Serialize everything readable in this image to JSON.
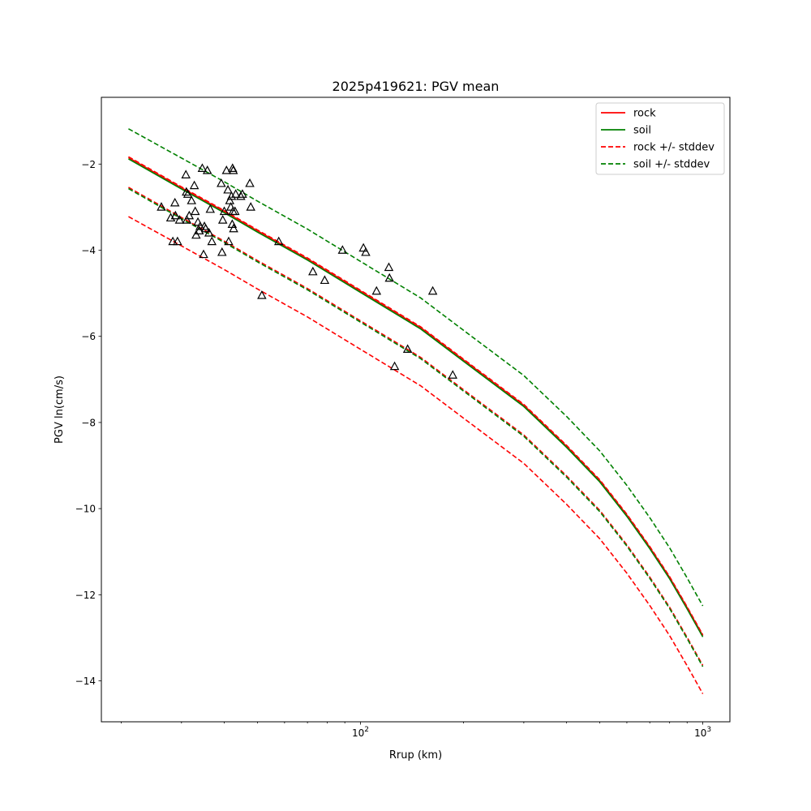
{
  "chart_data": {
    "type": "line",
    "title": "2025p419621: PGV mean",
    "xlabel": "Rrup (km)",
    "ylabel": "PGV ln(cm/s)",
    "xscale": "log",
    "xlim": [
      17.5,
      1200
    ],
    "ylim": [
      -14.95,
      -0.45
    ],
    "x_major_ticks": [
      100,
      1000
    ],
    "x_tick_labels": [
      "10",
      "10"
    ],
    "x_tick_exponents": [
      "2",
      "3"
    ],
    "x_minor_ticks": [
      20,
      30,
      40,
      50,
      60,
      70,
      80,
      90,
      200,
      300,
      400,
      500,
      600,
      700,
      800,
      900
    ],
    "y_ticks": [
      -14,
      -12,
      -10,
      -8,
      -6,
      -4,
      -2
    ],
    "y_tick_labels": [
      "−14",
      "−12",
      "−10",
      "−8",
      "−6",
      "−4",
      "−2"
    ],
    "grid": false,
    "legend_position": "top-right",
    "series": [
      {
        "name": "rock",
        "color": "#ff0000",
        "style": "solid",
        "x": [
          21,
          30,
          40,
          50,
          70,
          100,
          150,
          200,
          300,
          400,
          500,
          600,
          700,
          800,
          900,
          1000
        ],
        "y": [
          -1.85,
          -2.55,
          -3.1,
          -3.55,
          -4.2,
          -4.95,
          -5.8,
          -6.55,
          -7.6,
          -8.55,
          -9.35,
          -10.15,
          -10.9,
          -11.6,
          -12.3,
          -12.95
        ]
      },
      {
        "name": "soil",
        "color": "#008000",
        "style": "solid",
        "x": [
          21,
          30,
          40,
          50,
          70,
          100,
          150,
          200,
          300,
          400,
          500,
          600,
          700,
          800,
          900,
          1000
        ],
        "y": [
          -1.88,
          -2.58,
          -3.13,
          -3.58,
          -4.23,
          -4.98,
          -5.83,
          -6.58,
          -7.63,
          -8.58,
          -9.38,
          -10.18,
          -10.93,
          -11.63,
          -12.33,
          -12.98
        ]
      },
      {
        "name": "rock +/- stddev",
        "color": "#ff0000",
        "style": "dashed",
        "x": [
          21,
          30,
          40,
          50,
          70,
          100,
          150,
          200,
          300,
          400,
          500,
          600,
          700,
          800,
          900,
          1000
        ],
        "y": [
          -3.22,
          -3.9,
          -4.45,
          -4.9,
          -5.55,
          -6.3,
          -7.15,
          -7.9,
          -8.95,
          -9.9,
          -10.7,
          -11.5,
          -12.25,
          -12.95,
          -13.65,
          -14.3
        ]
      },
      {
        "name": "",
        "color": "#ff0000",
        "style": "dashed",
        "x": [
          21,
          30,
          40,
          50,
          70,
          100,
          150,
          200,
          300,
          400,
          500,
          600,
          700,
          800,
          900,
          1000
        ],
        "y": [
          -2.54,
          -3.24,
          -3.79,
          -4.24,
          -4.89,
          -5.64,
          -6.49,
          -7.24,
          -8.29,
          -9.24,
          -10.04,
          -10.84,
          -11.59,
          -12.29,
          -12.99,
          -13.64
        ]
      },
      {
        "name": "",
        "color": "#ff0000",
        "style": "dashed",
        "x": [
          21,
          30,
          40,
          50,
          70,
          100,
          150,
          200,
          300,
          400,
          500,
          600,
          700,
          800,
          900,
          1000
        ],
        "y": [
          -1.83,
          -2.53,
          -3.08,
          -3.53,
          -4.18,
          -4.93,
          -5.78,
          -6.53,
          -7.58,
          -8.53,
          -9.33,
          -10.13,
          -10.88,
          -11.58,
          -12.28,
          -12.93
        ]
      },
      {
        "name": "soil +/- stddev",
        "color": "#008000",
        "style": "dashed",
        "x": [
          21,
          30,
          40,
          50,
          70,
          100,
          150,
          200,
          300,
          400,
          500,
          600,
          700,
          800,
          900,
          1000
        ],
        "y": [
          -1.18,
          -1.86,
          -2.41,
          -2.86,
          -3.51,
          -4.26,
          -5.11,
          -5.86,
          -6.91,
          -7.86,
          -8.66,
          -9.46,
          -10.21,
          -10.91,
          -11.61,
          -12.26
        ]
      },
      {
        "name": "",
        "color": "#008000",
        "style": "dashed",
        "x": [
          21,
          30,
          40,
          50,
          70,
          100,
          150,
          200,
          300,
          400,
          500,
          600,
          700,
          800,
          900,
          1000
        ],
        "y": [
          -2.57,
          -3.27,
          -3.82,
          -4.27,
          -4.92,
          -5.67,
          -6.52,
          -7.27,
          -8.32,
          -9.27,
          -10.07,
          -10.87,
          -11.62,
          -12.32,
          -13.02,
          -13.67
        ]
      }
    ],
    "observations": {
      "marker": "open-triangle",
      "color": "#000000",
      "points": [
        {
          "x": 26.2,
          "y": -3.0
        },
        {
          "x": 27.9,
          "y": -3.25
        },
        {
          "x": 28.3,
          "y": -3.8
        },
        {
          "x": 28.7,
          "y": -2.9
        },
        {
          "x": 28.8,
          "y": -3.2
        },
        {
          "x": 29.2,
          "y": -3.8
        },
        {
          "x": 29.6,
          "y": -3.3
        },
        {
          "x": 30.9,
          "y": -2.25
        },
        {
          "x": 31.0,
          "y": -2.65
        },
        {
          "x": 31.1,
          "y": -3.3
        },
        {
          "x": 31.3,
          "y": -2.7
        },
        {
          "x": 31.6,
          "y": -3.2
        },
        {
          "x": 32.1,
          "y": -2.85
        },
        {
          "x": 32.7,
          "y": -2.5
        },
        {
          "x": 32.9,
          "y": -3.1
        },
        {
          "x": 33.1,
          "y": -3.65
        },
        {
          "x": 33.5,
          "y": -3.35
        },
        {
          "x": 33.8,
          "y": -3.55
        },
        {
          "x": 34.0,
          "y": -3.45
        },
        {
          "x": 34.5,
          "y": -2.1
        },
        {
          "x": 34.8,
          "y": -4.1
        },
        {
          "x": 35.0,
          "y": -3.45
        },
        {
          "x": 35.3,
          "y": -3.5
        },
        {
          "x": 35.7,
          "y": -2.15
        },
        {
          "x": 36.1,
          "y": -3.6
        },
        {
          "x": 36.4,
          "y": -3.05
        },
        {
          "x": 36.8,
          "y": -3.8
        },
        {
          "x": 39.2,
          "y": -2.45
        },
        {
          "x": 39.4,
          "y": -4.05
        },
        {
          "x": 39.6,
          "y": -3.3
        },
        {
          "x": 40.0,
          "y": -3.1
        },
        {
          "x": 40.6,
          "y": -2.15
        },
        {
          "x": 41.0,
          "y": -2.6
        },
        {
          "x": 41.2,
          "y": -3.8
        },
        {
          "x": 41.5,
          "y": -2.85
        },
        {
          "x": 41.8,
          "y": -3.0
        },
        {
          "x": 42.0,
          "y": -2.75
        },
        {
          "x": 42.2,
          "y": -3.4
        },
        {
          "x": 42.3,
          "y": -2.1
        },
        {
          "x": 42.4,
          "y": -3.1
        },
        {
          "x": 42.5,
          "y": -2.15
        },
        {
          "x": 42.6,
          "y": -3.5
        },
        {
          "x": 43.0,
          "y": -3.1
        },
        {
          "x": 43.2,
          "y": -2.7
        },
        {
          "x": 44.7,
          "y": -2.75
        },
        {
          "x": 45.2,
          "y": -2.7
        },
        {
          "x": 47.5,
          "y": -2.45
        },
        {
          "x": 47.8,
          "y": -3.0
        },
        {
          "x": 51.5,
          "y": -5.05
        },
        {
          "x": 57.7,
          "y": -3.8
        },
        {
          "x": 72.6,
          "y": -4.5
        },
        {
          "x": 78.6,
          "y": -4.7
        },
        {
          "x": 88.6,
          "y": -4.0
        },
        {
          "x": 102.0,
          "y": -3.95
        },
        {
          "x": 103.6,
          "y": -4.05
        },
        {
          "x": 111.4,
          "y": -4.95
        },
        {
          "x": 121.0,
          "y": -4.4
        },
        {
          "x": 121.5,
          "y": -4.65
        },
        {
          "x": 125.8,
          "y": -6.7
        },
        {
          "x": 137.3,
          "y": -6.3
        },
        {
          "x": 162.6,
          "y": -4.95
        },
        {
          "x": 186.0,
          "y": -6.9
        }
      ]
    }
  }
}
